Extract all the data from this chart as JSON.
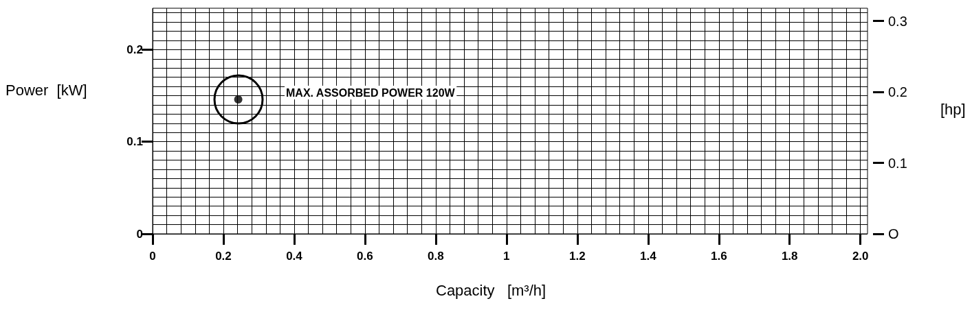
{
  "chart_data": {
    "type": "scatter",
    "xlabel": "Capacity   [m³/h]",
    "ylabel": "Power  [kW]",
    "y2label": "[hp]",
    "x": [
      0.242
    ],
    "series": [
      {
        "color": "#000000",
        "values": [
          0.146
        ]
      }
    ],
    "marker": "circle",
    "xlim": [
      0,
      2.02
    ],
    "xticks": [
      0,
      0.2,
      0.4,
      0.6,
      0.8,
      1,
      1.2,
      1.4,
      1.6,
      1.8,
      {
        "value": 2,
        "label": "2.0"
      }
    ],
    "ylim": [
      0,
      0.245
    ],
    "yticks": [
      0,
      0.1,
      0.2
    ],
    "y2lim": [
      0,
      0.318
    ],
    "y2ticks": [
      {
        "value": 0,
        "label": "O"
      },
      0.1,
      0.2,
      0.3
    ],
    "grid": true,
    "annotations": [
      "MAX. ASSORBED POWER 120W"
    ]
  }
}
